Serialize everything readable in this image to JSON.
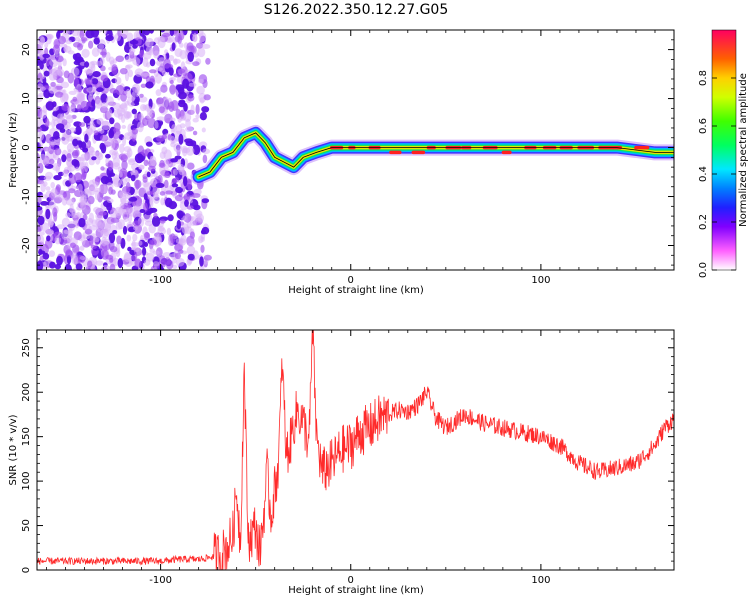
{
  "title": "S126.2022.350.12.27.G05",
  "colors": {
    "snr_line": "#ff2a2a",
    "scatter_cloud": "#6a1ee8",
    "ridge_core": "#ff2020"
  },
  "chart_data": [
    {
      "type": "heatmap",
      "panel": "top",
      "xlabel": "Height of straight line (km)",
      "ylabel": "Frequency (Hz)",
      "xlim": [
        -165,
        170
      ],
      "ylim": [
        -25,
        24
      ],
      "x_ticks": [
        -100,
        0,
        100
      ],
      "y_ticks": [
        -20,
        -10,
        0,
        10,
        20
      ],
      "colorbar": {
        "label": "Normalized spectral amplitude",
        "range": [
          0,
          1
        ],
        "ticks": [
          "0.0",
          "0.2",
          "0.4",
          "0.6",
          "0.8"
        ],
        "colormap": [
          "#ffffff",
          "#ff00ff",
          "#6000ff",
          "#0050ff",
          "#00e0ff",
          "#00ff40",
          "#c0ff00",
          "#ffd000",
          "#ff4000",
          "#ff0060"
        ]
      },
      "noise_region_x": [
        -165,
        -75
      ],
      "ridge": {
        "x": [
          -80,
          -74,
          -68,
          -62,
          -56,
          -50,
          -45,
          -40,
          -35,
          -30,
          -25,
          -18,
          -10,
          0,
          20,
          40,
          60,
          80,
          100,
          120,
          140,
          160,
          170
        ],
        "y": [
          -6,
          -5,
          -2,
          -1,
          2,
          3,
          1,
          -2,
          -3,
          -4,
          -2,
          -1,
          0,
          0,
          0,
          0,
          0,
          0,
          0,
          0,
          0,
          -1,
          -1
        ]
      }
    },
    {
      "type": "line",
      "panel": "bottom",
      "xlabel": "Height of straight line (km)",
      "ylabel": "SNR (10 * v/v)",
      "xlim": [
        -165,
        170
      ],
      "ylim": [
        0,
        270
      ],
      "x_ticks": [
        -100,
        0,
        100
      ],
      "y_ticks": [
        0,
        50,
        100,
        150,
        200,
        250
      ],
      "series": [
        {
          "x": [
            -165,
            -140,
            -120,
            -100,
            -90,
            -80,
            -72,
            -68,
            -65,
            -62,
            -60,
            -58,
            -56,
            -54,
            -52,
            -50,
            -48,
            -46,
            -44,
            -42,
            -40,
            -38,
            -36,
            -34,
            -32,
            -30,
            -28,
            -26,
            -24,
            -22,
            -20,
            -18,
            -15,
            -10,
            -5,
            0,
            5,
            10,
            15,
            20,
            25,
            30,
            35,
            40,
            45,
            50,
            60,
            70,
            80,
            90,
            100,
            110,
            120,
            130,
            140,
            150,
            160,
            165,
            170
          ],
          "y": [
            10,
            10,
            10,
            10,
            12,
            12,
            15,
            18,
            25,
            40,
            90,
            30,
            230,
            35,
            40,
            50,
            20,
            55,
            110,
            60,
            90,
            120,
            235,
            130,
            140,
            165,
            180,
            170,
            160,
            140,
            270,
            150,
            110,
            120,
            135,
            140,
            155,
            160,
            170,
            175,
            180,
            178,
            185,
            200,
            170,
            160,
            175,
            165,
            160,
            155,
            150,
            140,
            120,
            110,
            115,
            120,
            140,
            160,
            170
          ]
        }
      ]
    }
  ]
}
